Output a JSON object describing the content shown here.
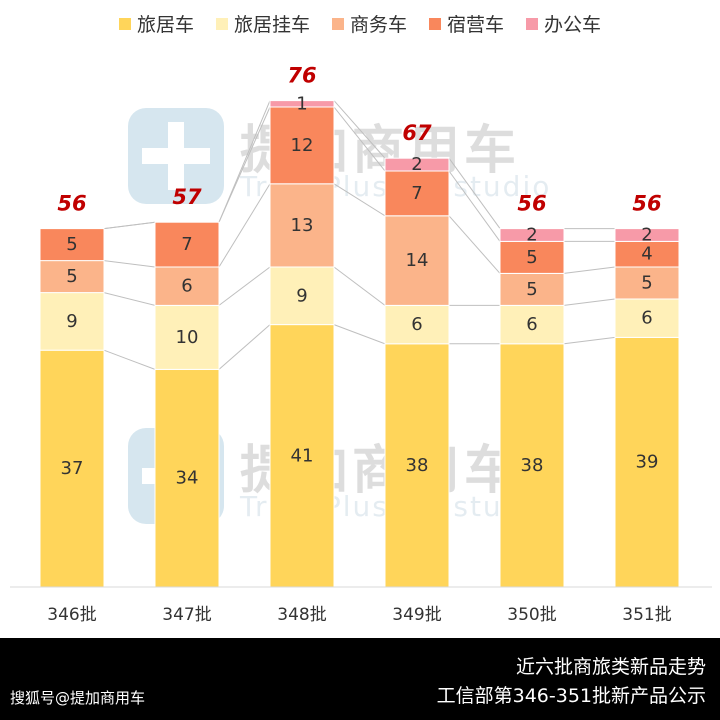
{
  "legend": {
    "items": [
      {
        "label": "旅居车",
        "color": "#FFD55A"
      },
      {
        "label": "旅居挂车",
        "color": "#FFF0B8"
      },
      {
        "label": "商务车",
        "color": "#FBB48A"
      },
      {
        "label": "宿营车",
        "color": "#F9875C"
      },
      {
        "label": "办公车",
        "color": "#F79AA8"
      }
    ]
  },
  "watermark": {
    "cn": "提加商用车",
    "en": "TruckPlus CV studio"
  },
  "footer": {
    "title": "近六批商旅类新品走势",
    "subtitle": "工信部第346-351批新产品公示",
    "source": "搜狐号@提加商用车"
  },
  "chart_data": {
    "type": "bar",
    "stacked": true,
    "categories": [
      "346批",
      "347批",
      "348批",
      "349批",
      "350批",
      "351批"
    ],
    "series": [
      {
        "name": "旅居车",
        "color": "#FFD55A",
        "values": [
          37,
          34,
          41,
          38,
          38,
          39
        ]
      },
      {
        "name": "旅居挂车",
        "color": "#FFF0B8",
        "values": [
          9,
          10,
          9,
          6,
          6,
          6
        ]
      },
      {
        "name": "商务车",
        "color": "#FBB48A",
        "values": [
          5,
          6,
          13,
          14,
          5,
          5
        ]
      },
      {
        "name": "宿营车",
        "color": "#F9875C",
        "values": [
          5,
          7,
          12,
          7,
          5,
          4
        ]
      },
      {
        "name": "办公车",
        "color": "#F79AA8",
        "values": [
          0,
          0,
          1,
          2,
          2,
          2
        ]
      }
    ],
    "totals": [
      56,
      57,
      76,
      67,
      56,
      56
    ],
    "total_label_color": "#C00000",
    "legend_position": "top",
    "grid": false,
    "series_connector_lines": true
  }
}
